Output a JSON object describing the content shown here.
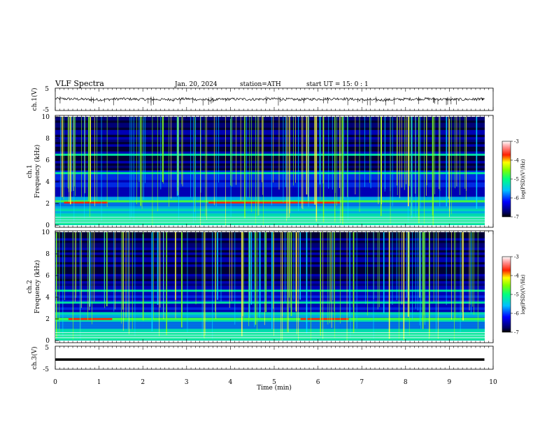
{
  "header": {
    "title": "VLF  Spectra",
    "date": "Jan. 20, 2024",
    "station": "station=ATH",
    "start": "start  UT  =   15: 0  : 1"
  },
  "colors": {
    "trace": "#000000",
    "spectrogram_low": "#000064",
    "spectrogram_high": "#ffffff"
  },
  "chart_data": [
    {
      "type": "line",
      "name": "ch1-waveform",
      "ylabel": "ch.1(V)",
      "ylim": [
        -5,
        5
      ],
      "yticks": [
        "5",
        "-5"
      ],
      "x": [
        0,
        0.5,
        1,
        1.5,
        2,
        2.5,
        3,
        3.5,
        4,
        4.5,
        5,
        5.5,
        6,
        6.5,
        7,
        7.5,
        8,
        8.5,
        9,
        9.5,
        9.8
      ],
      "y": [
        0.3,
        0.1,
        -0.2,
        0.2,
        0.0,
        -0.1,
        0.2,
        -0.3,
        0.1,
        0.0,
        0.2,
        -0.1,
        0.1,
        0.3,
        -0.2,
        -0.3,
        0.1,
        0.2,
        -0.1,
        0.0,
        0.1
      ]
    },
    {
      "type": "heatmap",
      "name": "ch1-spectrogram",
      "ylabel": "ch.1\nFrequency  (kHz)",
      "ylim": [
        0,
        10
      ],
      "yticks": [
        "0",
        "2",
        "4",
        "6",
        "8",
        "10"
      ],
      "colorbar": {
        "label": "log(PSD)(V²/Hz)",
        "range": [
          -7,
          -3
        ],
        "ticks": [
          "-3",
          "-4",
          "-5",
          "-6",
          "-7"
        ]
      },
      "bands_khz": [
        2.2,
        4.8,
        6.5
      ]
    },
    {
      "type": "heatmap",
      "name": "ch2-spectrogram",
      "ylabel": "ch.2\nFrequency  (kHz)",
      "ylim": [
        0,
        10
      ],
      "yticks": [
        "0",
        "2",
        "4",
        "6",
        "8",
        "10"
      ],
      "colorbar": {
        "label": "log(PSD)(V²/Hz)",
        "range": [
          -7,
          -3
        ],
        "ticks": [
          "-3",
          "-4",
          "-5",
          "-6",
          "-7"
        ]
      },
      "bands_khz": [
        2.0,
        3.5,
        4.6
      ]
    },
    {
      "type": "line",
      "name": "ch3-waveform",
      "ylabel": "ch.3(V)",
      "ylim": [
        -5,
        5
      ],
      "yticks": [
        "5",
        "-5"
      ],
      "x": [
        0,
        9.8
      ],
      "y": [
        -0.8,
        -0.8
      ]
    }
  ],
  "xaxis": {
    "label": "Time  (min)",
    "range": [
      0,
      10
    ],
    "ticks": [
      "0",
      "1",
      "2",
      "3",
      "4",
      "5",
      "6",
      "7",
      "8",
      "9",
      "10"
    ]
  }
}
